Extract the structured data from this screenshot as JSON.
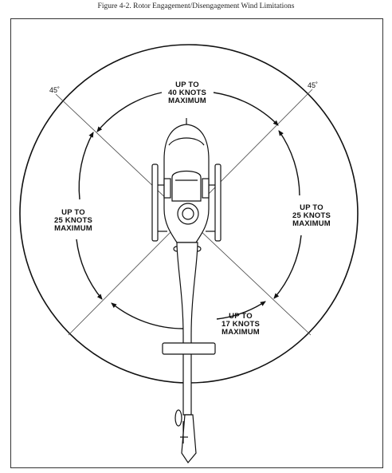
{
  "caption": "Figure 4-2. Rotor Engagement/Disengagement Wind Limitations",
  "angles": {
    "left": "45˚",
    "right": "45˚"
  },
  "zones": {
    "front": [
      "UP TO",
      "40 KNOTS",
      "MAXIMUM"
    ],
    "left": [
      "UP TO",
      "25 KNOTS",
      "MAXIMUM"
    ],
    "right": [
      "UP TO",
      "25 KNOTS",
      "MAXIMUM"
    ],
    "rear": [
      "UP TO",
      "17 KNOTS",
      "MAXIMUM"
    ]
  }
}
